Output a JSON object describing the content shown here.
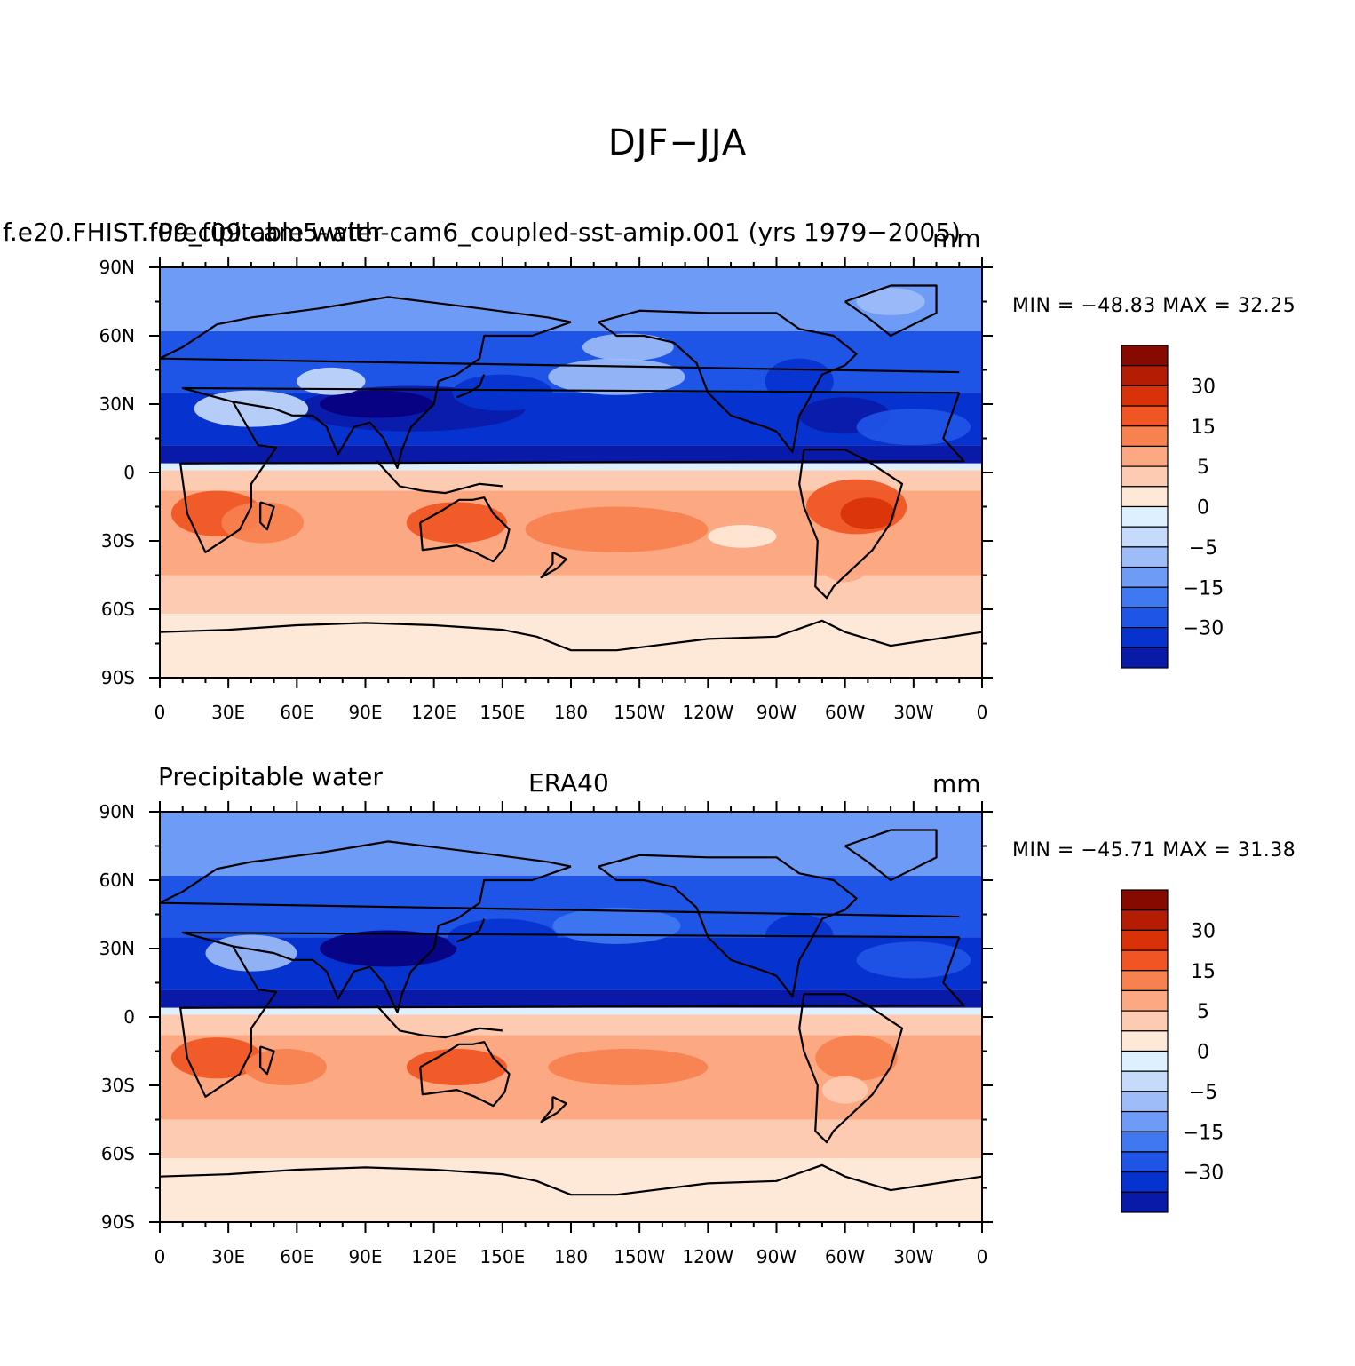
{
  "title": "DJF−JJA",
  "colors": {
    "levels": [
      "#08007f",
      "#0a1aa8",
      "#0633cf",
      "#1f55e6",
      "#3f78f0",
      "#6e9bf5",
      "#9dbcf8",
      "#c6dbfb",
      "#deeffd",
      "#fee9d8",
      "#fdcbb1",
      "#fba883",
      "#f7814f",
      "#f05523",
      "#d93208",
      "#b41c03",
      "#860a00"
    ],
    "coast": "#000000"
  },
  "panels": [
    {
      "id": "model",
      "left_title": "Precipitable water",
      "center_title": "f.e20.FHIST.f09_f09.cam5-with-cam6_coupled-sst-amip.001 (yrs 1979−2005)",
      "units": "mm",
      "min_max": "MIN = −48.83 MAX =   32.25",
      "stats": {
        "min": -48.83,
        "max": 32.25
      }
    },
    {
      "id": "obs",
      "left_title": "Precipitable water",
      "center_title": "ERA40",
      "units": "mm",
      "min_max": "MIN = −45.71 MAX =   31.38",
      "stats": {
        "min": -45.71,
        "max": 31.38
      }
    }
  ],
  "axes": {
    "lat_labels": [
      "90N",
      "60N",
      "30N",
      "0",
      "30S",
      "60S",
      "90S"
    ],
    "lon_labels": [
      "0",
      "30E",
      "60E",
      "90E",
      "120E",
      "150E",
      "180",
      "150W",
      "120W",
      "90W",
      "60W",
      "30W",
      "0"
    ]
  },
  "colorbar_labels": [
    "30",
    "15",
    "5",
    "0",
    "−5",
    "−15",
    "−30"
  ]
}
